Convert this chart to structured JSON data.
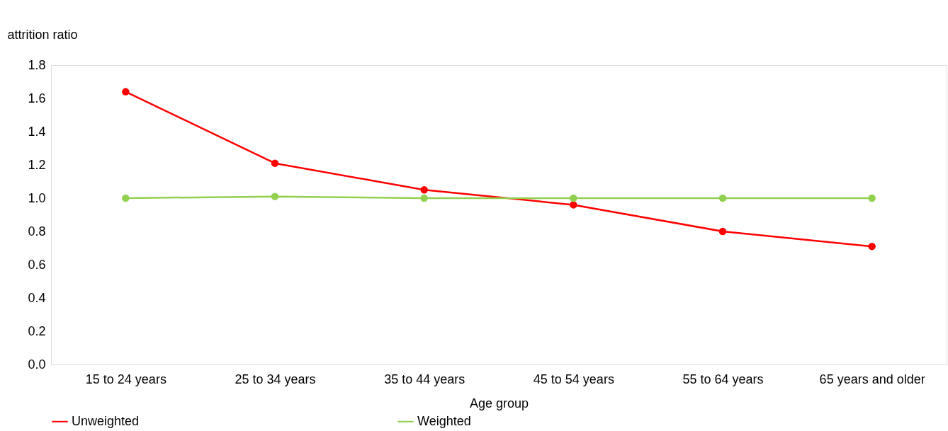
{
  "chart_data": {
    "type": "line",
    "ylabel": "attrition ratio",
    "xlabel": "Age group",
    "categories": [
      "15 to 24 years",
      "25 to 34 years",
      "35 to 44 years",
      "45 to 54 years",
      "55 to 64 years",
      "65 years and older"
    ],
    "series": [
      {
        "name": "Unweighted",
        "color": "#ff0000",
        "values": [
          1.64,
          1.21,
          1.05,
          0.96,
          0.8,
          0.71
        ]
      },
      {
        "name": "Weighted",
        "color": "#92d050",
        "values": [
          1.0,
          1.01,
          1.0,
          1.0,
          1.0,
          1.0
        ]
      }
    ],
    "ylim": [
      0,
      1.8
    ],
    "yticks": [
      {
        "value": 0,
        "label": "0.0"
      },
      0.2,
      0.4,
      0.6,
      0.8,
      {
        "value": 1,
        "label": "1.0"
      },
      1.2,
      1.4,
      1.6,
      1.8
    ],
    "grid": false,
    "legend": "bottom",
    "marker": "circle",
    "line_style": "solid"
  }
}
